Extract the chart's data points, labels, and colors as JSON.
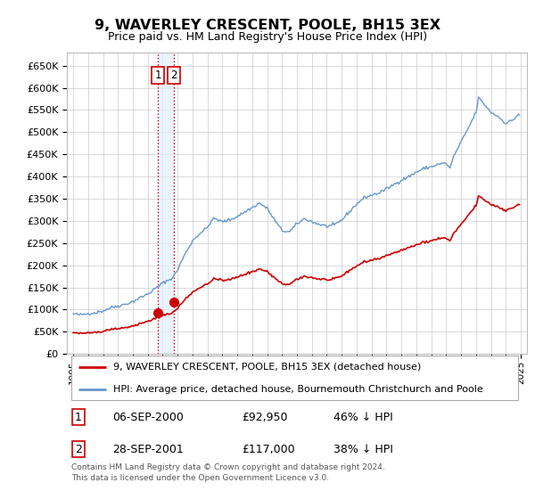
{
  "title": "9, WAVERLEY CRESCENT, POOLE, BH15 3EX",
  "subtitle": "Price paid vs. HM Land Registry's House Price Index (HPI)",
  "sale_color": "#cc0000",
  "hpi_color": "#6699cc",
  "dashed_color": "#cc0000",
  "sale_band_color": "#ddeeff",
  "legend_entries": [
    "9, WAVERLEY CRESCENT, POOLE, BH15 3EX (detached house)",
    "HPI: Average price, detached house, Bournemouth Christchurch and Poole"
  ],
  "table_rows": [
    [
      "1",
      "06-SEP-2000",
      "£92,950",
      "46% ↓ HPI"
    ],
    [
      "2",
      "28-SEP-2001",
      "£117,000",
      "38% ↓ HPI"
    ]
  ],
  "footnote": "Contains HM Land Registry data © Crown copyright and database right 2024.\nThis data is licensed under the Open Government Licence v3.0.",
  "ylim": [
    0,
    680000
  ],
  "yticks": [
    0,
    50000,
    100000,
    150000,
    200000,
    250000,
    300000,
    350000,
    400000,
    450000,
    500000,
    550000,
    600000,
    650000
  ],
  "background_color": "#ffffff",
  "grid_color": "#cccccc"
}
